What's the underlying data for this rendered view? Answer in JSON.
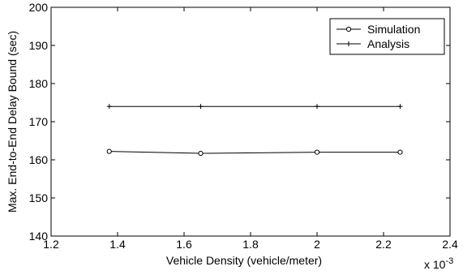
{
  "chart_data": {
    "type": "line",
    "title": "",
    "xlabel": "Vehicle Density (vehicle/meter)",
    "ylabel": "Max. End-to-End Delay Bound (sec)",
    "x_exponent_label": "x 10",
    "x_exponent_power": "-3",
    "xlim": [
      1.2,
      2.4
    ],
    "ylim": [
      140,
      200
    ],
    "xticks": [
      "1.2",
      "1.4",
      "1.6",
      "1.8",
      "2",
      "2.2",
      "2.4"
    ],
    "yticks": [
      "140",
      "150",
      "160",
      "170",
      "180",
      "190",
      "200"
    ],
    "x": [
      1.375,
      1.65,
      2.0,
      2.25
    ],
    "series": [
      {
        "name": "Simulation",
        "marker": "circle",
        "values": [
          162.2,
          161.7,
          162.0,
          162.0
        ]
      },
      {
        "name": "Analysis",
        "marker": "plus",
        "values": [
          174.0,
          174.0,
          174.0,
          174.0
        ]
      }
    ],
    "legend_position": "top-right",
    "grid": false
  }
}
